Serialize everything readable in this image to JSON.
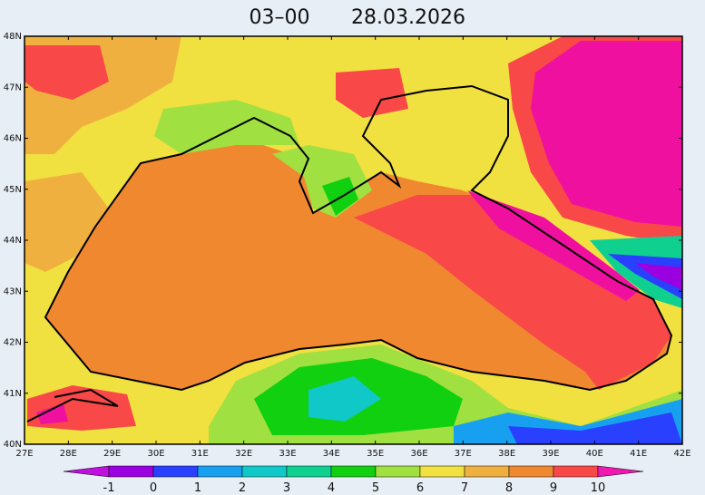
{
  "title": {
    "time": "03–00",
    "date": "28.03.2026"
  },
  "lat_labels": [
    "48N",
    "47N",
    "46N",
    "45N",
    "44N",
    "43N",
    "42N",
    "41N",
    "40N"
  ],
  "lon_labels": [
    "27E",
    "28E",
    "29E",
    "30E",
    "31E",
    "32E",
    "33E",
    "34E",
    "35E",
    "36E",
    "37E",
    "38E",
    "39E",
    "40E",
    "41E",
    "42E"
  ],
  "colorbar": {
    "ticks": [
      -1,
      0,
      1,
      2,
      3,
      4,
      5,
      6,
      7,
      8,
      9,
      10
    ],
    "colors": [
      "#c010e0",
      "#9a00e0",
      "#2a40ff",
      "#18a0f0",
      "#10c8c8",
      "#10d090",
      "#10d010",
      "#a0e040",
      "#f0e040",
      "#f0b040",
      "#f08830",
      "#f84848",
      "#f018b0"
    ]
  }
}
